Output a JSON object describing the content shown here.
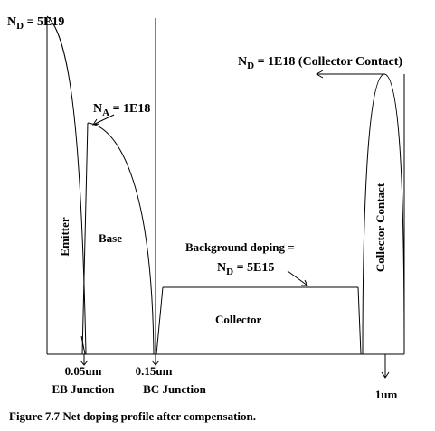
{
  "labels": {
    "nd_emitter": {
      "symbol": "N",
      "subscript": "D",
      "value": " = 5E19"
    },
    "na_base": {
      "symbol": "N",
      "subscript": "A",
      "value": " = 1E18"
    },
    "nd_collector_contact": {
      "symbol": "N",
      "subscript": "D",
      "value": " = 1E18 (Collector Contact)"
    },
    "background_line1": "Background doping =",
    "background_line2": {
      "symbol": "N",
      "subscript": "D",
      "value": " = 5E15"
    },
    "emitter": "Emitter",
    "base": "Base",
    "collector": "Collector",
    "collector_contact": "Collector Contact"
  },
  "x_ticks": [
    {
      "value": "0.05um",
      "label": "EB Junction"
    },
    {
      "value": "0.15um",
      "label": "BC Junction"
    },
    {
      "value": "1um",
      "label": ""
    }
  ],
  "caption": "Figure 7.7 Net doping profile after compensation."
}
